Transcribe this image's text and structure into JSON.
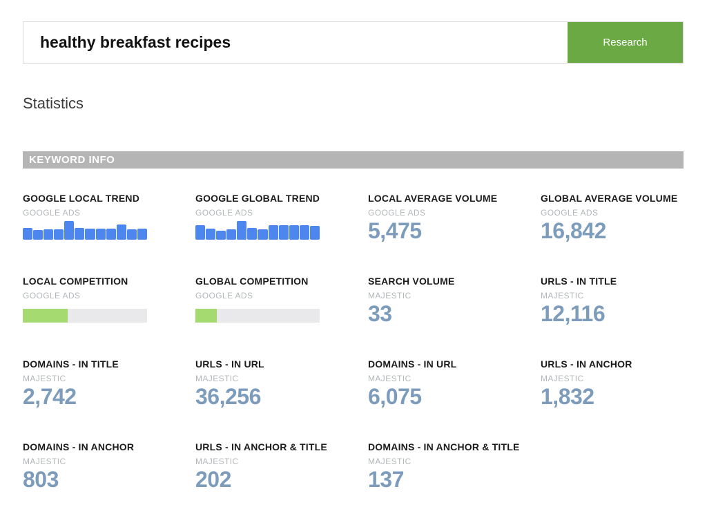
{
  "search": {
    "query": "healthy breakfast recipes",
    "button_label": "Research"
  },
  "page": {
    "heading": "Statistics",
    "section_banner": "KEYWORD INFO"
  },
  "colors": {
    "accent_green": "#6ba945",
    "trend_bar_blue": "#4d86ee",
    "progress_fill_green": "#a5da70",
    "progress_track_gray": "#e9e9ec",
    "number_steel_blue": "#7d9cbc",
    "banner_gray": "#b5b5b5"
  },
  "stats": {
    "cards": [
      {
        "label": "GOOGLE LOCAL TREND",
        "source": "GOOGLE ADS",
        "type": "trend"
      },
      {
        "label": "GOOGLE GLOBAL TREND",
        "source": "GOOGLE ADS",
        "type": "trend"
      },
      {
        "label": "LOCAL AVERAGE VOLUME",
        "source": "GOOGLE ADS",
        "type": "number",
        "value": "5,475"
      },
      {
        "label": "GLOBAL AVERAGE VOLUME",
        "source": "GOOGLE ADS",
        "type": "number",
        "value": "16,842"
      },
      {
        "label": "LOCAL COMPETITION",
        "source": "GOOGLE ADS",
        "type": "progress"
      },
      {
        "label": "GLOBAL COMPETITION",
        "source": "GOOGLE ADS",
        "type": "progress"
      },
      {
        "label": "SEARCH VOLUME",
        "source": "MAJESTIC",
        "type": "number",
        "value": "33"
      },
      {
        "label": "URLS - IN TITLE",
        "source": "MAJESTIC",
        "type": "number",
        "value": "12,116"
      },
      {
        "label": "DOMAINS - IN TITLE",
        "source": "MAJESTIC",
        "type": "number",
        "value": "2,742"
      },
      {
        "label": "URLS - IN URL",
        "source": "MAJESTIC",
        "type": "number",
        "value": "36,256"
      },
      {
        "label": "DOMAINS - IN URL",
        "source": "MAJESTIC",
        "type": "number",
        "value": "6,075"
      },
      {
        "label": "URLS - IN ANCHOR",
        "source": "MAJESTIC",
        "type": "number",
        "value": "1,832"
      },
      {
        "label": "DOMAINS - IN ANCHOR",
        "source": "MAJESTIC",
        "type": "number",
        "value": "803"
      },
      {
        "label": "URLS - IN ANCHOR & TITLE",
        "source": "MAJESTIC",
        "type": "number",
        "value": "202"
      },
      {
        "label": "DOMAINS - IN ANCHOR & TITLE",
        "source": "MAJESTIC",
        "type": "number",
        "value": "137"
      }
    ]
  },
  "chart_data": [
    {
      "id": "google_local_trend",
      "type": "bar",
      "title": "Google Local Trend",
      "source": "Google Ads",
      "bar_count": 12,
      "values_pct_of_max": [
        63,
        52,
        56,
        56,
        100,
        63,
        59,
        59,
        59,
        81,
        56,
        59
      ],
      "xlabel": "",
      "ylabel": "",
      "axes_visible": false,
      "legend": "none",
      "bar_color": "#4d86ee"
    },
    {
      "id": "google_global_trend",
      "type": "bar",
      "title": "Google Global Trend",
      "source": "Google Ads",
      "bar_count": 12,
      "values_pct_of_max": [
        79,
        61,
        50,
        57,
        100,
        64,
        57,
        79,
        79,
        79,
        79,
        75
      ],
      "xlabel": "",
      "ylabel": "",
      "axes_visible": false,
      "legend": "none",
      "bar_color": "#4d86ee"
    },
    {
      "id": "local_competition",
      "type": "progress",
      "title": "Local Competition",
      "source": "Google Ads",
      "percent": 36,
      "fill_color": "#a5da70",
      "track_color": "#e9e9ec"
    },
    {
      "id": "global_competition",
      "type": "progress",
      "title": "Global Competition",
      "source": "Google Ads",
      "percent": 17,
      "fill_color": "#a5da70",
      "track_color": "#e9e9ec"
    }
  ]
}
